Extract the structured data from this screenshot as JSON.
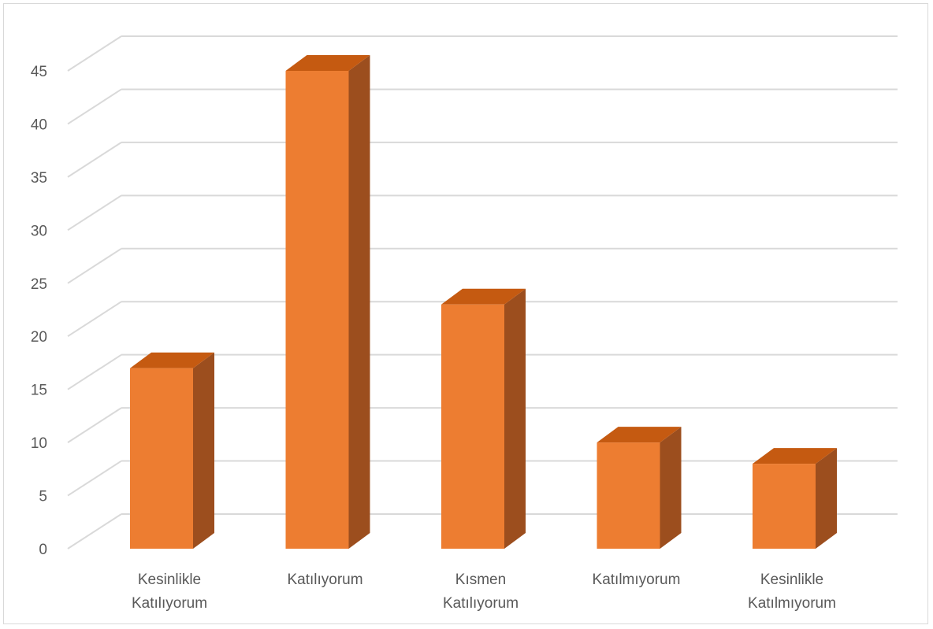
{
  "chart_data": {
    "type": "bar",
    "style": "3d-column",
    "categories": [
      [
        "Kesinlikle",
        "Katılıyorum"
      ],
      [
        "Katılıyorum"
      ],
      [
        "Kısmen",
        "Katılıyorum"
      ],
      [
        "Katılmıyorum"
      ],
      [
        "Kesinlikle",
        "Katılmıyorum"
      ]
    ],
    "values": [
      17,
      45,
      23,
      10,
      8
    ],
    "ylim": [
      0,
      45
    ],
    "yticks": [
      "0",
      "5",
      "10",
      "15",
      "20",
      "25",
      "30",
      "35",
      "40",
      "45"
    ],
    "grid": true,
    "legend": "none",
    "title": "",
    "xlabel": "",
    "ylabel": "",
    "colors": {
      "bar_front": "#ED7D31",
      "bar_top": "#C55A11",
      "bar_side": "#9C4E1E",
      "grid": "#d9d9d9",
      "text": "#595959"
    }
  }
}
